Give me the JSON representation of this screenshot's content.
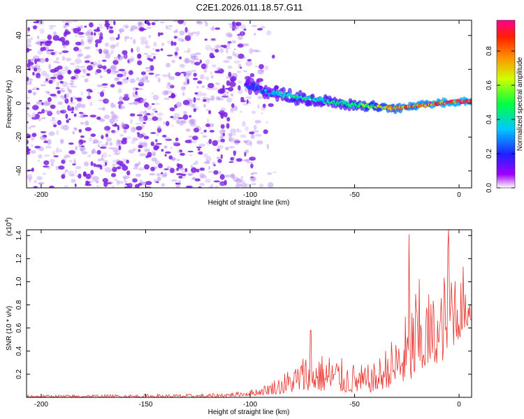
{
  "title": "C2E1.2026.011.18.57.G11",
  "chart_data": [
    {
      "type": "heatmap",
      "name": "spectrogram",
      "xlabel": "Height of straight line (km)",
      "ylabel": "Frequency (Hz)",
      "xlim": [
        -207,
        6
      ],
      "ylim": [
        -50,
        49
      ],
      "xticks": [
        -200,
        -150,
        -100,
        -50,
        0
      ],
      "yticks": [
        -40,
        -20,
        0,
        20,
        40
      ],
      "colorbar": {
        "label": "Normalized spectral amplitude",
        "range": [
          0,
          0.98
        ],
        "ticks": [
          "0.0",
          "0.2",
          "0.4",
          "0.6",
          "0.8"
        ],
        "tick_values": [
          0,
          0.2,
          0.4,
          0.6,
          0.8
        ],
        "colormap": "rainbow (white-violet-blue-cyan-green-yellow-red-magenta)"
      },
      "noise_region": {
        "x_range": [
          -207,
          -95
        ],
        "y_range": [
          -50,
          49
        ]
      },
      "signal_track": {
        "x": [
          -100,
          -90,
          -80,
          -70,
          -60,
          -50,
          -40,
          -30,
          -20,
          -10,
          0,
          6
        ],
        "frequency": [
          10,
          6,
          4,
          2.5,
          0.5,
          -1,
          -2,
          -3,
          -1.5,
          0,
          1,
          1
        ],
        "amplitude": [
          0.22,
          0.35,
          0.45,
          0.4,
          0.45,
          0.5,
          0.6,
          0.75,
          0.85,
          0.9,
          0.95,
          0.9
        ]
      }
    },
    {
      "type": "line",
      "name": "snr",
      "xlabel": "Height of straight line (km)",
      "ylabel": "SNR (10 * v/v)",
      "scale_label": "(x10",
      "scale_exponent": "4",
      "scale_suffix": ")",
      "xlim": [
        -207,
        6
      ],
      "ylim": [
        0,
        1.45
      ],
      "xticks": [
        -200,
        -150,
        -100,
        -50,
        0
      ],
      "yticks": [
        "0.2",
        "0.4",
        "0.6",
        "0.8",
        "1.0",
        "1.2",
        "1.4"
      ],
      "ytick_values": [
        0.2,
        0.4,
        0.6,
        0.8,
        1.0,
        1.2,
        1.4
      ],
      "series_color": "#e8312b",
      "envelope": {
        "x": [
          -207,
          -120,
          -105,
          -95,
          -85,
          -78,
          -72,
          -65,
          -60,
          -55,
          -50,
          -45,
          -40,
          -35,
          -30,
          -25,
          -20,
          -15,
          -10,
          -7,
          -5,
          0,
          3,
          6
        ],
        "upper": [
          0.02,
          0.03,
          0.05,
          0.09,
          0.2,
          0.3,
          0.42,
          0.38,
          0.4,
          0.32,
          0.3,
          0.28,
          0.3,
          0.45,
          0.55,
          0.75,
          1.05,
          0.95,
          0.85,
          1.1,
          1.42,
          1.1,
          0.9,
          0.95
        ],
        "lower": [
          0.0,
          0.0,
          0.01,
          0.02,
          0.03,
          0.05,
          0.06,
          0.05,
          0.05,
          0.04,
          0.04,
          0.04,
          0.05,
          0.08,
          0.1,
          0.12,
          0.15,
          0.25,
          0.3,
          0.32,
          0.4,
          0.5,
          0.6,
          0.65
        ]
      },
      "peaks": [
        {
          "x": -24,
          "y": 1.41
        },
        {
          "x": -5,
          "y": 1.45
        },
        {
          "x": 2,
          "y": 1.13
        },
        {
          "x": -71,
          "y": 0.58
        }
      ]
    }
  ]
}
